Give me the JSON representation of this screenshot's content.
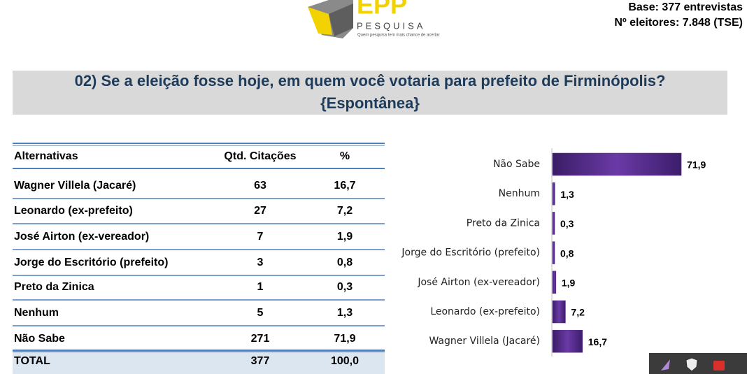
{
  "header": {
    "logo_text": "EPP",
    "logo_subtext": "PESQUISA",
    "tagline": "Quem pesquisa tem mais chance de acertar",
    "base": "Base: 377 entrevistas",
    "voters": "Nº eleitores: 7.848  (TSE)"
  },
  "title_lines": [
    "02) Se a eleição fosse hoje, em quem você votaria para prefeito de Firminópolis?",
    "{Espontânea}"
  ],
  "table": {
    "columns": [
      "Alternativas",
      "Qtd. Citações",
      "%"
    ],
    "rows": [
      [
        "Wagner Villela (Jacaré)",
        "63",
        "16,7"
      ],
      [
        "Leonardo (ex-prefeito)",
        "27",
        "7,2"
      ],
      [
        "José Airton (ex-vereador)",
        "7",
        "1,9"
      ],
      [
        "Jorge do Escritório (prefeito)",
        "3",
        "0,8"
      ],
      [
        "Preto da Zinica",
        "1",
        "0,3"
      ],
      [
        "Nenhum",
        "5",
        "1,3"
      ],
      [
        "Não Sabe",
        "271",
        "71,9"
      ]
    ],
    "total": [
      "TOTAL",
      "377",
      "100,0"
    ]
  },
  "chart_data": {
    "type": "hbar",
    "categories": [
      "Não Sabe",
      "Nenhum",
      "Preto da Zinica",
      "Jorge do Escritório (prefeito)",
      "José Airton (ex-vereador)",
      "Leonardo (ex-prefeito)",
      "Wagner Villela (Jacaré)"
    ],
    "values": [
      71.9,
      1.3,
      0.3,
      0.8,
      1.9,
      7.2,
      16.7
    ],
    "value_labels": [
      "71,9",
      "1,3",
      "0,3",
      "0,8",
      "1,9",
      "7,2",
      "16,7"
    ],
    "color": "#5b2d90"
  }
}
